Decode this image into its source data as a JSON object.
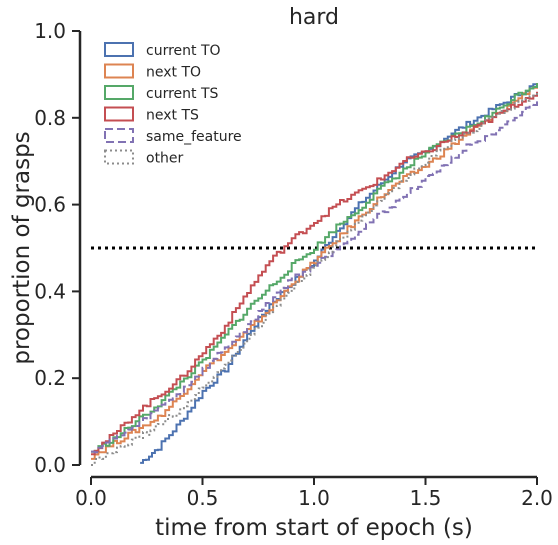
{
  "chart_data": {
    "type": "line",
    "title": "hard",
    "xlabel": "time from start of epoch (s)",
    "ylabel": "proportion of grasps",
    "xlim": [
      0,
      2
    ],
    "ylim": [
      0,
      1
    ],
    "xticks": [
      "0.0",
      "0.5",
      "1.0",
      "1.5",
      "2.0"
    ],
    "yticks": [
      "0.0",
      "0.2",
      "0.4",
      "0.6",
      "0.8",
      "1.0"
    ],
    "grid": false,
    "legend_position": "top-left",
    "reference_line": {
      "y": 0.5,
      "style": "dotted",
      "color": "#000000"
    },
    "series": [
      {
        "name": "current TO",
        "color": "#4c72b0",
        "dash": "solid",
        "x": [
          0.22,
          0.3,
          0.4,
          0.5,
          0.6,
          0.7,
          0.8,
          0.9,
          1.0,
          1.1,
          1.2,
          1.3,
          1.4,
          1.5,
          1.6,
          1.7,
          1.8,
          1.9,
          2.0
        ],
        "y": [
          0.005,
          0.04,
          0.1,
          0.17,
          0.22,
          0.3,
          0.37,
          0.42,
          0.47,
          0.54,
          0.6,
          0.65,
          0.7,
          0.72,
          0.76,
          0.79,
          0.82,
          0.85,
          0.88
        ]
      },
      {
        "name": "next TO",
        "color": "#dd8452",
        "dash": "solid",
        "x": [
          0.0,
          0.1,
          0.2,
          0.3,
          0.4,
          0.5,
          0.6,
          0.7,
          0.8,
          0.9,
          1.0,
          1.1,
          1.2,
          1.3,
          1.4,
          1.5,
          1.6,
          1.7,
          1.8,
          1.9,
          2.0
        ],
        "y": [
          0.02,
          0.05,
          0.08,
          0.11,
          0.16,
          0.22,
          0.26,
          0.31,
          0.36,
          0.42,
          0.47,
          0.52,
          0.57,
          0.62,
          0.66,
          0.69,
          0.73,
          0.77,
          0.8,
          0.84,
          0.88
        ]
      },
      {
        "name": "current TS",
        "color": "#55a868",
        "dash": "solid",
        "x": [
          0.0,
          0.1,
          0.2,
          0.3,
          0.4,
          0.5,
          0.6,
          0.7,
          0.8,
          0.9,
          1.0,
          1.1,
          1.2,
          1.3,
          1.4,
          1.5,
          1.6,
          1.7,
          1.8,
          1.9,
          2.0
        ],
        "y": [
          0.03,
          0.06,
          0.1,
          0.14,
          0.19,
          0.24,
          0.3,
          0.36,
          0.41,
          0.46,
          0.5,
          0.55,
          0.59,
          0.64,
          0.68,
          0.72,
          0.75,
          0.78,
          0.81,
          0.85,
          0.88
        ]
      },
      {
        "name": "next TS",
        "color": "#c44e52",
        "dash": "solid",
        "x": [
          0.0,
          0.1,
          0.2,
          0.3,
          0.4,
          0.5,
          0.6,
          0.7,
          0.8,
          0.9,
          1.0,
          1.1,
          1.2,
          1.3,
          1.4,
          1.5,
          1.6,
          1.7,
          1.8,
          1.9,
          2.0
        ],
        "y": [
          0.03,
          0.07,
          0.12,
          0.16,
          0.2,
          0.26,
          0.32,
          0.4,
          0.47,
          0.52,
          0.56,
          0.6,
          0.63,
          0.66,
          0.7,
          0.72,
          0.75,
          0.77,
          0.8,
          0.83,
          0.86
        ]
      },
      {
        "name": "same_feature",
        "color": "#8172b3",
        "dash": "dashed",
        "x": [
          0.0,
          0.1,
          0.2,
          0.3,
          0.4,
          0.5,
          0.6,
          0.7,
          0.8,
          0.9,
          1.0,
          1.1,
          1.2,
          1.3,
          1.4,
          1.5,
          1.6,
          1.7,
          1.8,
          1.9,
          2.0
        ],
        "y": [
          0.03,
          0.06,
          0.09,
          0.13,
          0.17,
          0.22,
          0.27,
          0.32,
          0.38,
          0.43,
          0.46,
          0.5,
          0.54,
          0.58,
          0.62,
          0.66,
          0.7,
          0.74,
          0.76,
          0.8,
          0.84
        ]
      },
      {
        "name": "other",
        "color": "#8c8c8c",
        "dash": "dotted",
        "x": [
          0.0,
          0.1,
          0.2,
          0.3,
          0.4,
          0.5,
          0.6,
          0.7,
          0.8,
          0.9,
          1.0,
          1.1,
          1.2,
          1.3,
          1.4,
          1.5,
          1.6,
          1.7,
          1.8,
          1.9,
          2.0
        ],
        "y": [
          0.005,
          0.03,
          0.06,
          0.09,
          0.13,
          0.18,
          0.23,
          0.29,
          0.35,
          0.41,
          0.46,
          0.51,
          0.56,
          0.61,
          0.66,
          0.7,
          0.74,
          0.77,
          0.8,
          0.83,
          0.86
        ]
      }
    ]
  }
}
